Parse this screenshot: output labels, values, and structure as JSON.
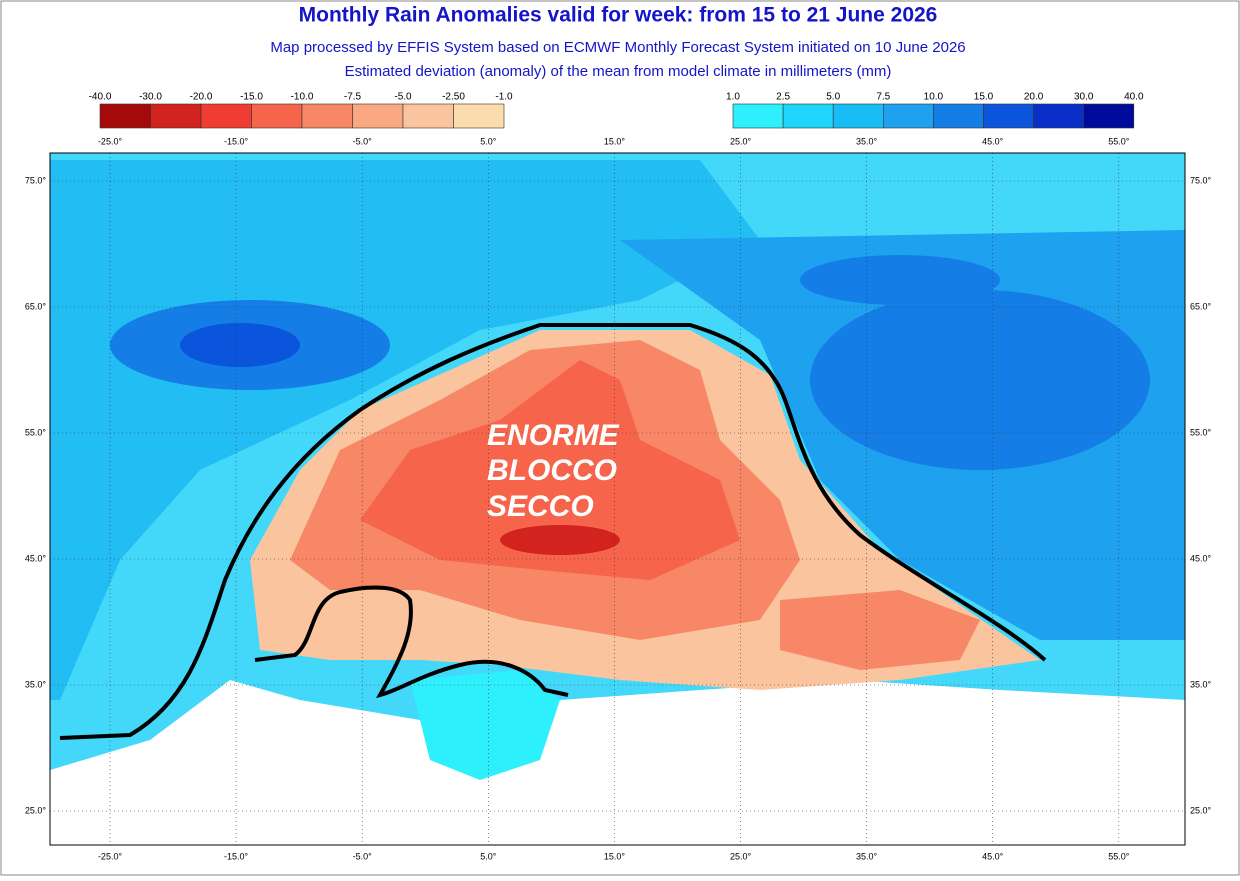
{
  "header": {
    "title": "Monthly Rain Anomalies valid for week: from 15 to 21 June 2026",
    "subtitle": "Map processed by EFFIS System based on ECMWF Monthly Forecast System initiated on 10 June 2026",
    "description": "Estimated deviation (anomaly) of the mean from model climate in millimeters (mm)"
  },
  "legend": {
    "dry": {
      "labels": [
        "-40.0",
        "-30.0",
        "-20.0",
        "-15.0",
        "-10.0",
        "-7.5",
        "-5.0",
        "-2.50",
        "-1.0"
      ],
      "colors": [
        "#a50a0a",
        "#d2231e",
        "#f03c32",
        "#f5644b",
        "#f78766",
        "#f9a882",
        "#fac59e",
        "#fcdcac"
      ]
    },
    "wet": {
      "labels": [
        "1.0",
        "2.5",
        "5.0",
        "7.5",
        "10.0",
        "15.0",
        "20.0",
        "30.0",
        "40.0"
      ],
      "colors": [
        "#2ef0fc",
        "#1ed6fa",
        "#19bdf5",
        "#1ea2f0",
        "#147ee6",
        "#0a55dc",
        "#0a2ec8",
        "#000a9b"
      ]
    }
  },
  "map": {
    "lon_labels": [
      "-25.0°",
      "-15.0°",
      "-5.0°",
      "5.0°",
      "15.0°",
      "25.0°",
      "35.0°",
      "45.0°",
      "55.0°"
    ],
    "lat_labels": [
      "75.0°",
      "65.0°",
      "55.0°",
      "45.0°",
      "35.0°",
      "25.0°"
    ],
    "annotation": [
      "ENORME",
      "BLOCCO",
      "SECCO"
    ]
  }
}
